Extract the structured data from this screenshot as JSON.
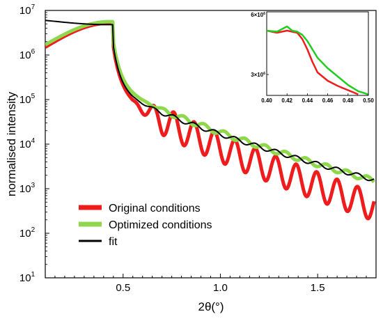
{
  "chart_data": {
    "type": "line",
    "title": "",
    "xlabel": "2θ(°)",
    "ylabel": "normalised intensity",
    "xlim": [
      0.1,
      1.8
    ],
    "ylim": [
      10,
      10000000
    ],
    "yscale": "log",
    "grid": false,
    "legend_position": "lower-left",
    "x_ticks": [
      0.5,
      1.0,
      1.5
    ],
    "x_tick_labels": [
      "0.5",
      "1.0",
      "1.5"
    ],
    "y_ticks": [
      1,
      2,
      3,
      4,
      5,
      6,
      7
    ],
    "y_tick_base": "10",
    "series": [
      {
        "name": "Original conditions",
        "color": "#ee1c1c",
        "model": {
          "x0": 0.1,
          "y0": 1500000,
          "xc": 0.43,
          "plateau": 5200000,
          "decay_start": 0.45,
          "decay_end": 1.79,
          "log_start": 6.2,
          "log_end": 2.6,
          "osc_start": 0.55,
          "osc_amp": 0.32,
          "osc_period": 0.105
        }
      },
      {
        "name": "Optimized conditions",
        "color": "#8fd84e",
        "model": {
          "x0": 0.1,
          "y0": 1700000,
          "xc": 0.43,
          "plateau": 5600000,
          "decay_start": 0.45,
          "decay_end": 1.79,
          "log_start": 6.3,
          "log_end": 3.18,
          "osc_start": 0.6,
          "osc_amp": 0.06,
          "osc_period": 0.105
        }
      },
      {
        "name": "fit",
        "color": "#000000",
        "model": {
          "x0": 0.1,
          "y0": 6000000,
          "xc": 0.43,
          "plateau": 4800000,
          "decay_start": 0.45,
          "decay_end": 1.79,
          "log_start": 6.2,
          "log_end": 3.2,
          "osc_start": 0.55,
          "osc_amp": 0.05,
          "osc_period": 0.105
        }
      }
    ],
    "inset": {
      "type": "line",
      "xlim": [
        0.4,
        0.5
      ],
      "x_ticks": [
        0.4,
        0.42,
        0.44,
        0.46,
        0.48,
        0.5
      ],
      "x_tick_labels": [
        "0.40",
        "0.42",
        "0.44",
        "0.46",
        "0.48",
        "0.50"
      ],
      "ylim": [
        2000000,
        6000000
      ],
      "y_ticks": [
        3000000,
        6000000
      ],
      "y_tick_labels": [
        {
          "mantissa": "3×10",
          "exp": "6"
        },
        {
          "mantissa": "6×10",
          "exp": "6"
        }
      ],
      "series": [
        {
          "name": "Original conditions",
          "color": "#ee1c1c",
          "x": [
            0.4,
            0.41,
            0.42,
            0.425,
            0.43,
            0.435,
            0.44,
            0.445,
            0.45,
            0.46,
            0.47,
            0.48,
            0.49
          ],
          "y": [
            5100000,
            5000000,
            5100000,
            5050000,
            5000000,
            4700000,
            4200000,
            3600000,
            3100000,
            2700000,
            2450000,
            2250000,
            2050000
          ]
        },
        {
          "name": "Optimized conditions",
          "color": "#22cc22",
          "x": [
            0.4,
            0.41,
            0.42,
            0.425,
            0.43,
            0.435,
            0.44,
            0.445,
            0.45,
            0.46,
            0.47,
            0.48,
            0.49,
            0.5
          ],
          "y": [
            5100000,
            5050000,
            5300000,
            5100000,
            5050000,
            4900000,
            4600000,
            4200000,
            3800000,
            3300000,
            2900000,
            2500000,
            2200000,
            2050000
          ]
        }
      ]
    }
  }
}
